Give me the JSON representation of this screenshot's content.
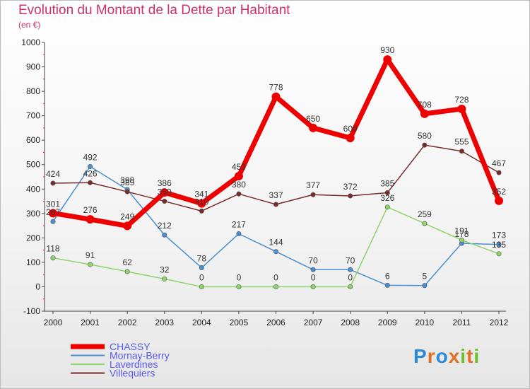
{
  "chart_data": {
    "type": "line",
    "title": "Evolution du Montant de la Dette par Habitant",
    "subtitle": "(en €)",
    "x": [
      "2000",
      "2001",
      "2002",
      "2003",
      "2004",
      "2005",
      "2006",
      "2007",
      "2008",
      "2009",
      "2010",
      "2011",
      "2012"
    ],
    "ylim": [
      -100,
      1000
    ],
    "yticks": [
      -100,
      0,
      100,
      200,
      300,
      400,
      500,
      600,
      700,
      800,
      900,
      1000
    ],
    "grid": false,
    "legend": "bottom-left",
    "series": [
      {
        "name": "CHASSY",
        "color": "#ee0000",
        "width": 7,
        "values": [
          301,
          276,
          249,
          386,
          341,
          453,
          778,
          650,
          609,
          930,
          708,
          728,
          352
        ]
      },
      {
        "name": "Mornay-Berry",
        "color": "#4a8fd0",
        "width": 1.5,
        "values": [
          267,
          492,
          398,
          212,
          78,
          217,
          144,
          70,
          70,
          6,
          5,
          178,
          173
        ]
      },
      {
        "name": "Laverdines",
        "color": "#8ed46a",
        "width": 1.5,
        "values": [
          118,
          91,
          62,
          32,
          0,
          0,
          0,
          0,
          0,
          326,
          259,
          191,
          135
        ]
      },
      {
        "name": "Villequiers",
        "color": "#7a2a2a",
        "width": 1.5,
        "values": [
          424,
          426,
          389,
          350,
          310,
          380,
          337,
          377,
          372,
          385,
          580,
          555,
          467
        ]
      }
    ]
  },
  "logo": {
    "text": "Proxiti",
    "letters": [
      "P",
      "r",
      "o",
      "x",
      "i",
      "t",
      "i"
    ],
    "colors": [
      "#2a8ad8",
      "#e07020",
      "#2a8ad8",
      "#e07020",
      "#6abf2a",
      "#e07020",
      "#6abf2a"
    ]
  }
}
